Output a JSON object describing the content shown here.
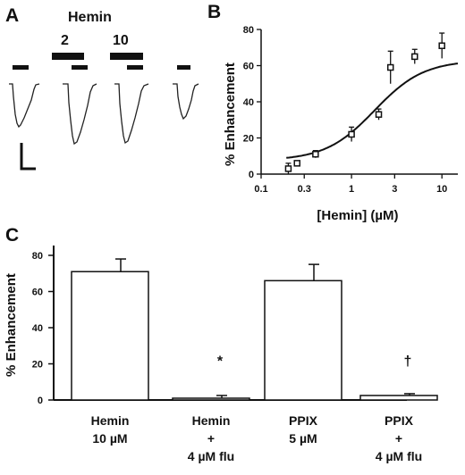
{
  "panels": {
    "a": {
      "letter": "A",
      "hemin_label": "Hemin",
      "concentration_labels": [
        "2",
        "10"
      ]
    },
    "b": {
      "letter": "B"
    },
    "c": {
      "letter": "C"
    }
  },
  "chart_data": [
    {
      "type": "scatter",
      "panel": "B",
      "xlabel": "[Hemin] (µM)",
      "ylabel": "% Enhancement",
      "xscale": "log",
      "xlim": [
        0.1,
        15
      ],
      "ylim": [
        0,
        80
      ],
      "x_ticks": [
        "0.1",
        "0.3",
        "1",
        "3",
        "10"
      ],
      "y_ticks": [
        "0",
        "20",
        "40",
        "60",
        "80"
      ],
      "points": [
        {
          "x": 0.2,
          "y": 3,
          "err": 3
        },
        {
          "x": 0.25,
          "y": 6,
          "err": 1
        },
        {
          "x": 0.4,
          "y": 11,
          "err": 2
        },
        {
          "x": 1.0,
          "y": 22,
          "err": 4
        },
        {
          "x": 2.0,
          "y": 33,
          "err": 3
        },
        {
          "x": 2.7,
          "y": 59,
          "err": 9
        },
        {
          "x": 5.0,
          "y": 65,
          "err": 4
        },
        {
          "x": 10.0,
          "y": 71,
          "err": 7
        }
      ],
      "fit": {
        "bottom": 7.5,
        "top": 63,
        "ec50": 1.8,
        "hill": 1.6
      },
      "grid": false
    },
    {
      "type": "bar",
      "panel": "C",
      "ylabel": "% Enhancement",
      "ylim": [
        0,
        80
      ],
      "y_ticks": [
        "0",
        "20",
        "40",
        "60",
        "80"
      ],
      "categories": [
        {
          "line1": "Hemin",
          "line2": "10 µM",
          "line3": ""
        },
        {
          "line1": "Hemin",
          "line2": "+",
          "line3": "4  µM flu"
        },
        {
          "line1": "PPIX",
          "line2": "5   µM",
          "line3": ""
        },
        {
          "line1": "PPIX",
          "line2": "+",
          "line3": "4  µM flu"
        }
      ],
      "values": [
        71,
        1,
        66,
        2.5
      ],
      "errors": [
        7,
        1.5,
        9,
        1
      ],
      "annotations": [
        "",
        "*",
        "",
        "†"
      ],
      "grid": false
    }
  ]
}
